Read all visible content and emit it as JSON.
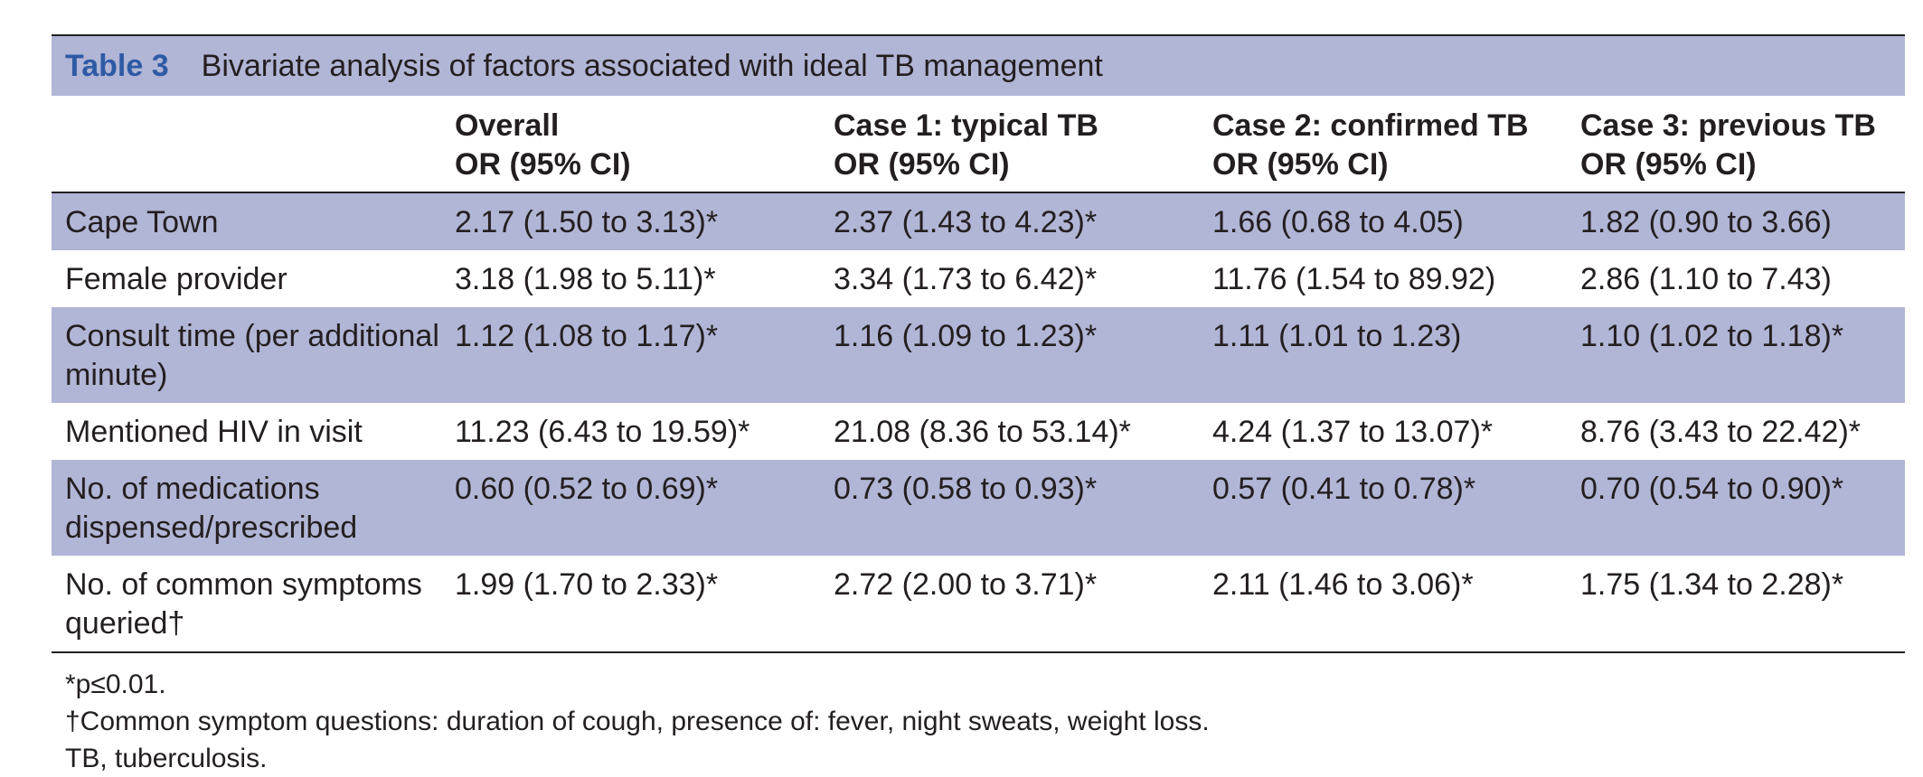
{
  "caption": {
    "label": "Table 3",
    "title": "Bivariate analysis of factors associated with ideal TB management"
  },
  "columns": [
    {
      "line1": "",
      "line2": ""
    },
    {
      "line1": "Overall",
      "line2": "OR (95% CI)"
    },
    {
      "line1": "Case 1: typical TB",
      "line2": "OR (95% CI)"
    },
    {
      "line1": "Case 2: confirmed TB",
      "line2": "OR (95% CI)"
    },
    {
      "line1": "Case 3: previous TB",
      "line2": "OR (95% CI)"
    }
  ],
  "rows": [
    {
      "factor": "Cape Town",
      "values": [
        "2.17 (1.50 to 3.13)*",
        "2.37 (1.43 to 4.23)*",
        "1.66 (0.68 to 4.05)",
        "1.82 (0.90 to 3.66)"
      ]
    },
    {
      "factor": "Female provider",
      "values": [
        "3.18 (1.98 to 5.11)*",
        "3.34 (1.73 to 6.42)*",
        "11.76 (1.54 to 89.92)",
        "2.86 (1.10 to 7.43)"
      ]
    },
    {
      "factor": "Consult time (per additional minute)",
      "values": [
        "1.12 (1.08 to 1.17)*",
        "1.16 (1.09 to 1.23)*",
        "1.11 (1.01 to 1.23)",
        "1.10 (1.02 to 1.18)*"
      ]
    },
    {
      "factor": "Mentioned HIV in visit",
      "values": [
        "11.23 (6.43 to 19.59)*",
        "21.08 (8.36 to 53.14)*",
        "4.24 (1.37 to 13.07)*",
        "8.76 (3.43 to 22.42)*"
      ]
    },
    {
      "factor": "No. of medications dispensed/prescribed",
      "values": [
        "0.60 (0.52 to 0.69)*",
        "0.73 (0.58 to 0.93)*",
        "0.57 (0.41 to 0.78)*",
        "0.70 (0.54 to 0.90)*"
      ]
    },
    {
      "factor": "No. of common symptoms queried†",
      "values": [
        "1.99 (1.70 to 2.33)*",
        "2.72 (2.00 to 3.71)*",
        "2.11 (1.46 to 3.06)*",
        "1.75 (1.34 to 2.28)*"
      ]
    }
  ],
  "footnotes": [
    "*p≤0.01.",
    "†Common symptom questions: duration of cough, presence of: fever, night sweats, weight loss.",
    "TB, tuberculosis."
  ],
  "colors": {
    "shading": "#b1b6d6",
    "label_blue": "#2e5aa5",
    "text": "#231f20"
  }
}
